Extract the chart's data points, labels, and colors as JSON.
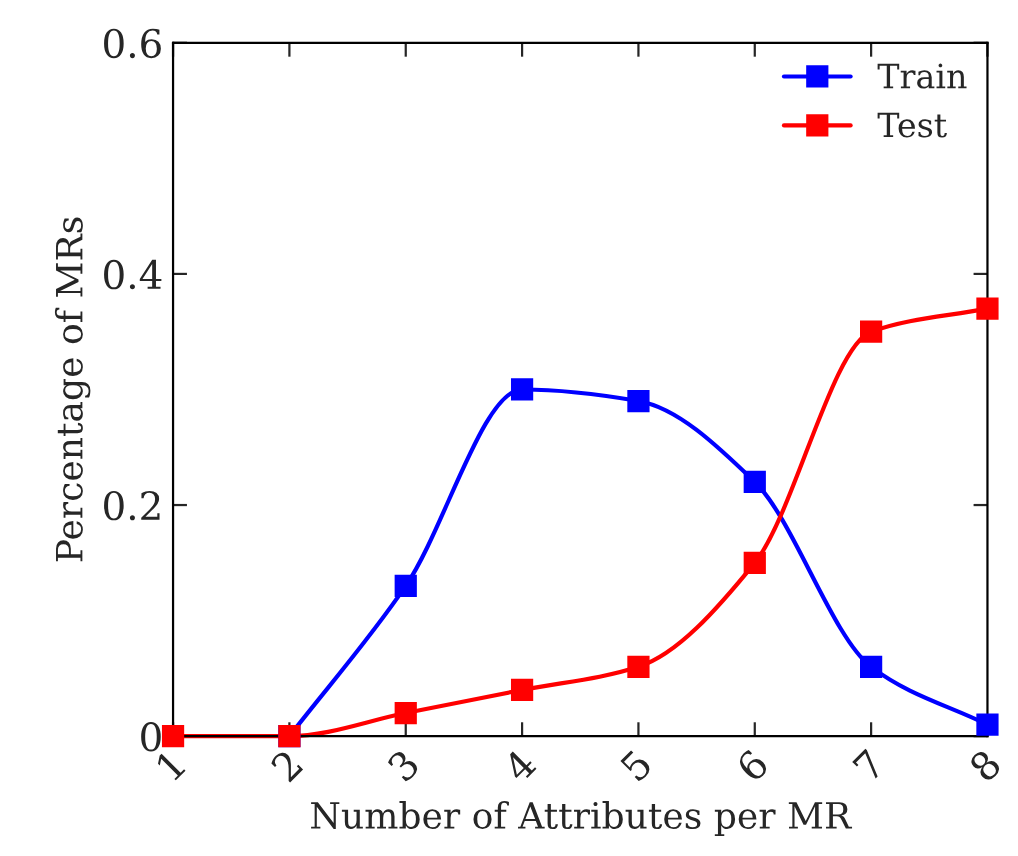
{
  "chart_data": {
    "type": "line",
    "xlabel": "Number of Attributes per MR",
    "ylabel": "Percentage of MRs",
    "xlim": [
      1,
      8
    ],
    "xticks": [
      1,
      2,
      3,
      4,
      5,
      6,
      7,
      8
    ],
    "ylim": [
      0,
      0.6
    ],
    "yticks": [
      0,
      0.2,
      0.4,
      0.6
    ],
    "series": [
      {
        "name": "Train",
        "color": "#0000ff",
        "x": [
          2,
          3,
          4,
          5,
          6,
          7,
          8
        ],
        "values": [
          0,
          0.13,
          0.3,
          0.29,
          0.22,
          0.06,
          0.01
        ]
      },
      {
        "name": "Test",
        "color": "#ff0000",
        "x": [
          1,
          2,
          3,
          4,
          5,
          6,
          7,
          8
        ],
        "values": [
          0,
          0,
          0.02,
          0.04,
          0.06,
          0.15,
          0.35,
          0.37
        ]
      }
    ],
    "marker": "square",
    "line_style": "solid",
    "legend": "top right",
    "grid": false
  }
}
